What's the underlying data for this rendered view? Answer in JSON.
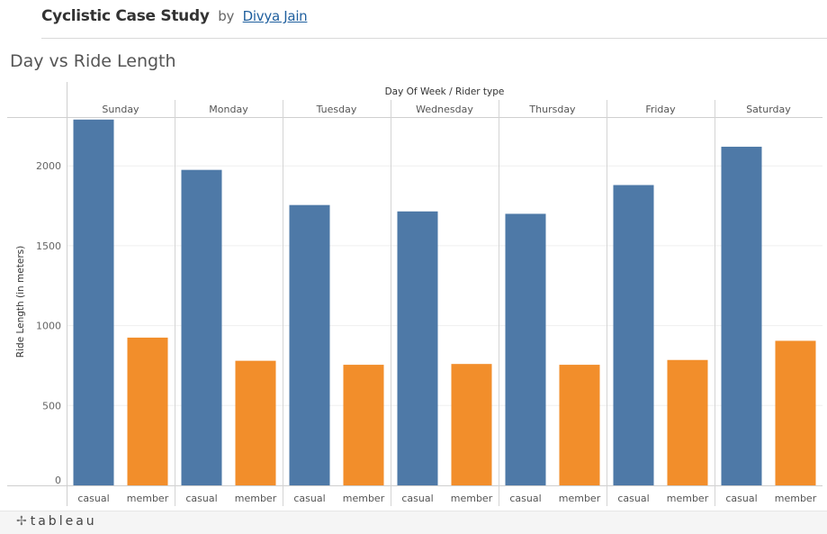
{
  "header": {
    "title": "Cyclistic Case Study",
    "by": "by",
    "author": "Divya Jain"
  },
  "sheet_title": "Day vs Ride Length",
  "footer": {
    "logo_icon": "tableau-plus-icon",
    "logo_text": "+tableau"
  },
  "colors": {
    "casual": "#4e79a7",
    "member": "#f28e2b"
  },
  "chart_data": {
    "type": "bar",
    "title": "Day vs Ride Length",
    "header_label": "Day Of Week / Rider type",
    "ylabel": "Ride Length (in meters)",
    "xlabel": "",
    "ylim": [
      0,
      2300
    ],
    "yticks": [
      0,
      500,
      1000,
      1500,
      2000
    ],
    "grid": true,
    "categories": [
      "Sunday",
      "Monday",
      "Tuesday",
      "Wednesday",
      "Thursday",
      "Friday",
      "Saturday"
    ],
    "rider_types": [
      "casual",
      "member"
    ],
    "series": [
      {
        "values": [
          2290,
          1975,
          1755,
          1715,
          1700,
          1880,
          2120
        ]
      },
      {
        "values": [
          925,
          780,
          755,
          760,
          755,
          785,
          905
        ]
      }
    ]
  }
}
